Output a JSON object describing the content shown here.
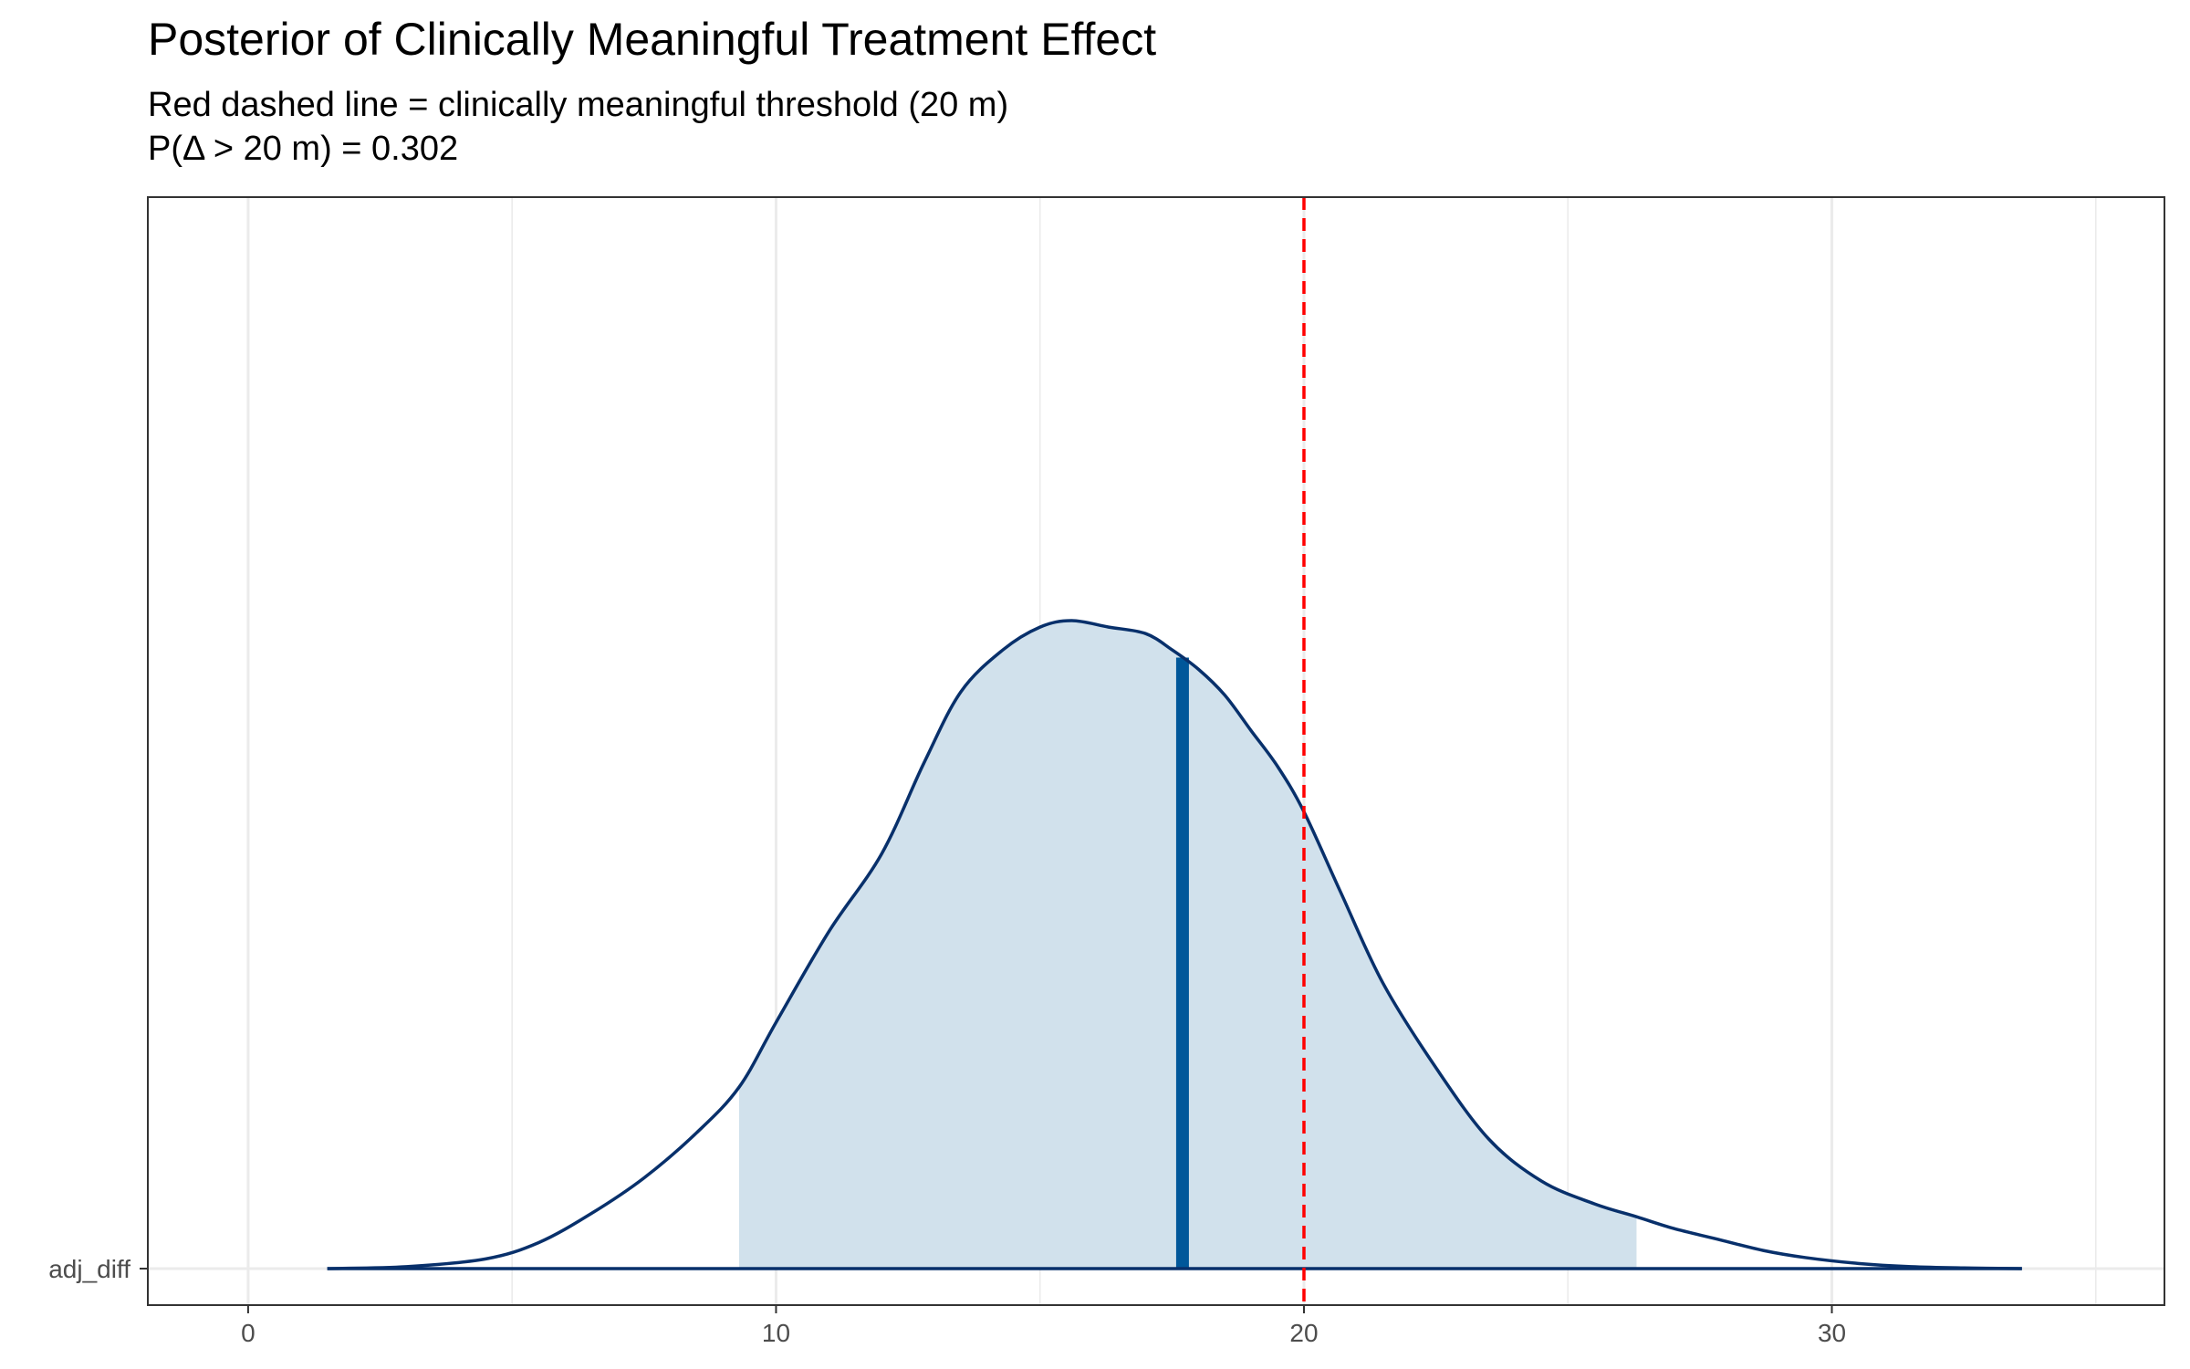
{
  "chart_data": {
    "type": "area",
    "title": "Posterior of Clinically Meaningful Treatment Effect",
    "subtitle_lines": [
      "Red dashed line = clinically meaningful threshold (20 m)",
      "P(Δ > 20 m) = 0.302"
    ],
    "xlabel": "",
    "ylabel": "",
    "xlim": [
      -1.9,
      36.3
    ],
    "x_ticks": [
      0,
      10,
      20,
      30
    ],
    "y_category": "adj_diff",
    "grid": "on",
    "colors": {
      "density_outline": "#08306b",
      "interval_fill": "#d1e1ec",
      "median_line": "#00579a",
      "threshold_line": "#ff0000",
      "grid": "#ebebeb",
      "panel_border": "#333333"
    },
    "density": {
      "x": [
        1.5,
        3,
        4.5,
        5.5,
        6.5,
        7.5,
        8.5,
        9.3,
        10,
        11,
        12,
        12.8,
        13.5,
        14.3,
        15,
        15.6,
        16.3,
        17,
        17.5,
        18,
        18.5,
        19,
        19.5,
        20,
        20.7,
        21.5,
        22.5,
        23.5,
        24.5,
        25.5,
        26.3,
        27,
        27.8,
        28.7,
        29.5,
        30.5,
        31.5,
        32.5,
        33.6
      ],
      "y": [
        0.0,
        0.003,
        0.015,
        0.04,
        0.085,
        0.14,
        0.21,
        0.28,
        0.38,
        0.52,
        0.64,
        0.78,
        0.89,
        0.955,
        0.99,
        1.0,
        0.99,
        0.98,
        0.955,
        0.925,
        0.885,
        0.83,
        0.775,
        0.705,
        0.58,
        0.44,
        0.31,
        0.2,
        0.135,
        0.1,
        0.08,
        0.062,
        0.046,
        0.028,
        0.017,
        0.008,
        0.003,
        0.001,
        0.0
      ]
    },
    "credible_interval": [
      9.3,
      26.3
    ],
    "median": 17.7,
    "threshold": 20
  }
}
